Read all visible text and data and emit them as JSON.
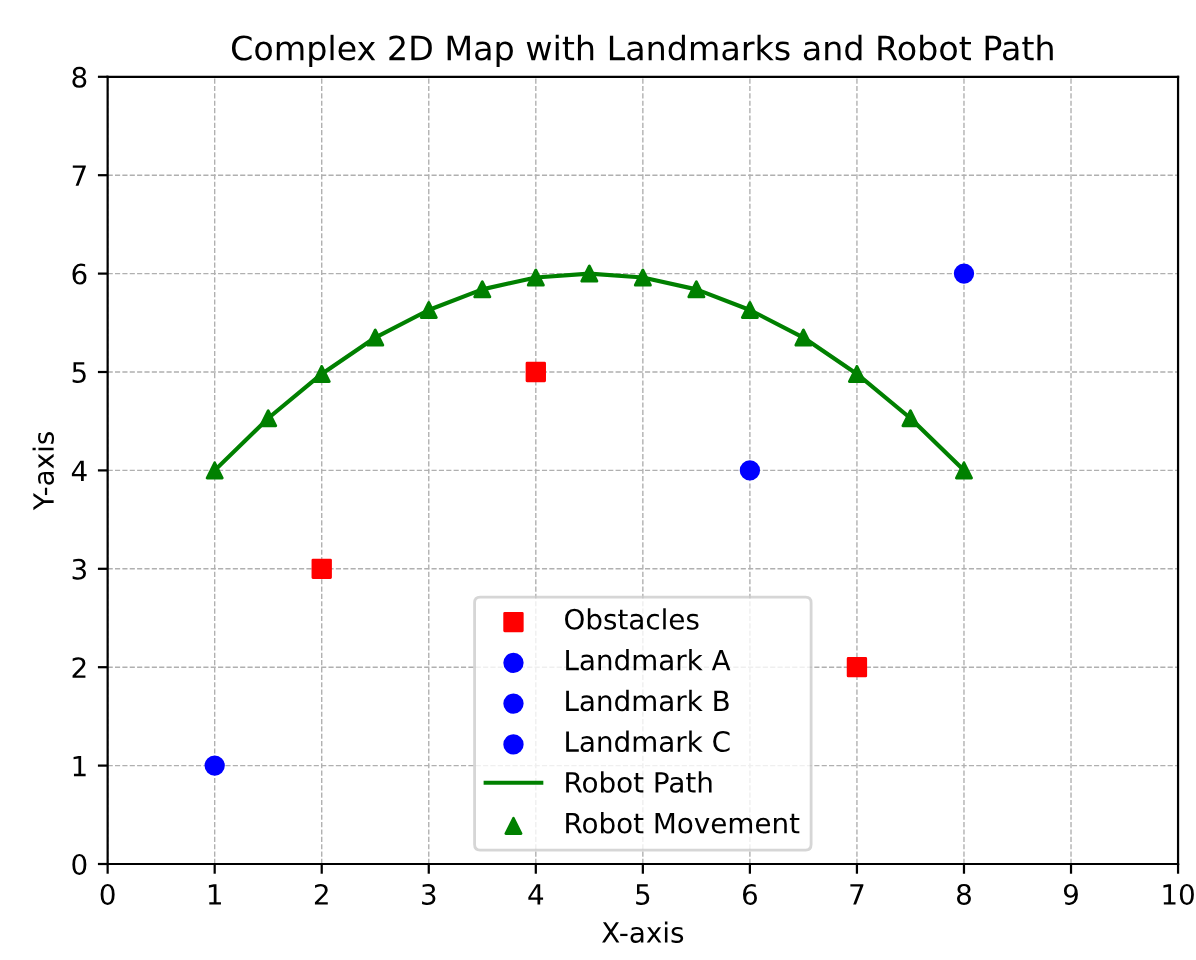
{
  "chart_data": {
    "type": "scatter",
    "title": "Complex 2D Map with Landmarks and Robot Path",
    "xlabel": "X-axis",
    "ylabel": "Y-axis",
    "xlim": [
      0,
      10
    ],
    "ylim": [
      0,
      8
    ],
    "xticks": [
      0,
      1,
      2,
      3,
      4,
      5,
      6,
      7,
      8,
      9,
      10
    ],
    "yticks": [
      0,
      1,
      2,
      3,
      4,
      5,
      6,
      7,
      8
    ],
    "grid": true,
    "legend": "bottom",
    "series": [
      {
        "name": "Obstacles",
        "type": "scatter",
        "marker": "square",
        "color": "#ff0000",
        "x": [
          2,
          4,
          7
        ],
        "values": [
          3,
          5,
          2
        ]
      },
      {
        "name": "Landmark A",
        "type": "scatter",
        "marker": "circle",
        "color": "#0000ff",
        "x": [
          1
        ],
        "values": [
          1
        ]
      },
      {
        "name": "Landmark B",
        "type": "scatter",
        "marker": "circle",
        "color": "#0000ff",
        "x": [
          6
        ],
        "values": [
          4
        ]
      },
      {
        "name": "Landmark C",
        "type": "scatter",
        "marker": "circle",
        "color": "#0000ff",
        "x": [
          8
        ],
        "values": [
          6
        ]
      },
      {
        "name": "Robot Path",
        "type": "line",
        "marker": "none",
        "color": "#008000",
        "x": [
          1,
          1.5,
          2,
          2.5,
          3,
          3.5,
          4,
          4.5,
          5,
          5.5,
          6,
          6.5,
          7,
          7.5,
          8
        ],
        "values": [
          4.0,
          4.53,
          4.98,
          5.35,
          5.63,
          5.84,
          5.96,
          6.0,
          5.96,
          5.84,
          5.63,
          5.35,
          4.98,
          4.53,
          4.0
        ]
      },
      {
        "name": "Robot Movement",
        "type": "scatter",
        "marker": "triangle",
        "color": "#008000",
        "x": [
          1,
          1.5,
          2,
          2.5,
          3,
          3.5,
          4,
          4.5,
          5,
          5.5,
          6,
          6.5,
          7,
          7.5,
          8
        ],
        "values": [
          4.0,
          4.53,
          4.98,
          5.35,
          5.63,
          5.84,
          5.96,
          6.0,
          5.96,
          5.84,
          5.63,
          5.35,
          4.98,
          4.53,
          4.0
        ]
      }
    ]
  }
}
